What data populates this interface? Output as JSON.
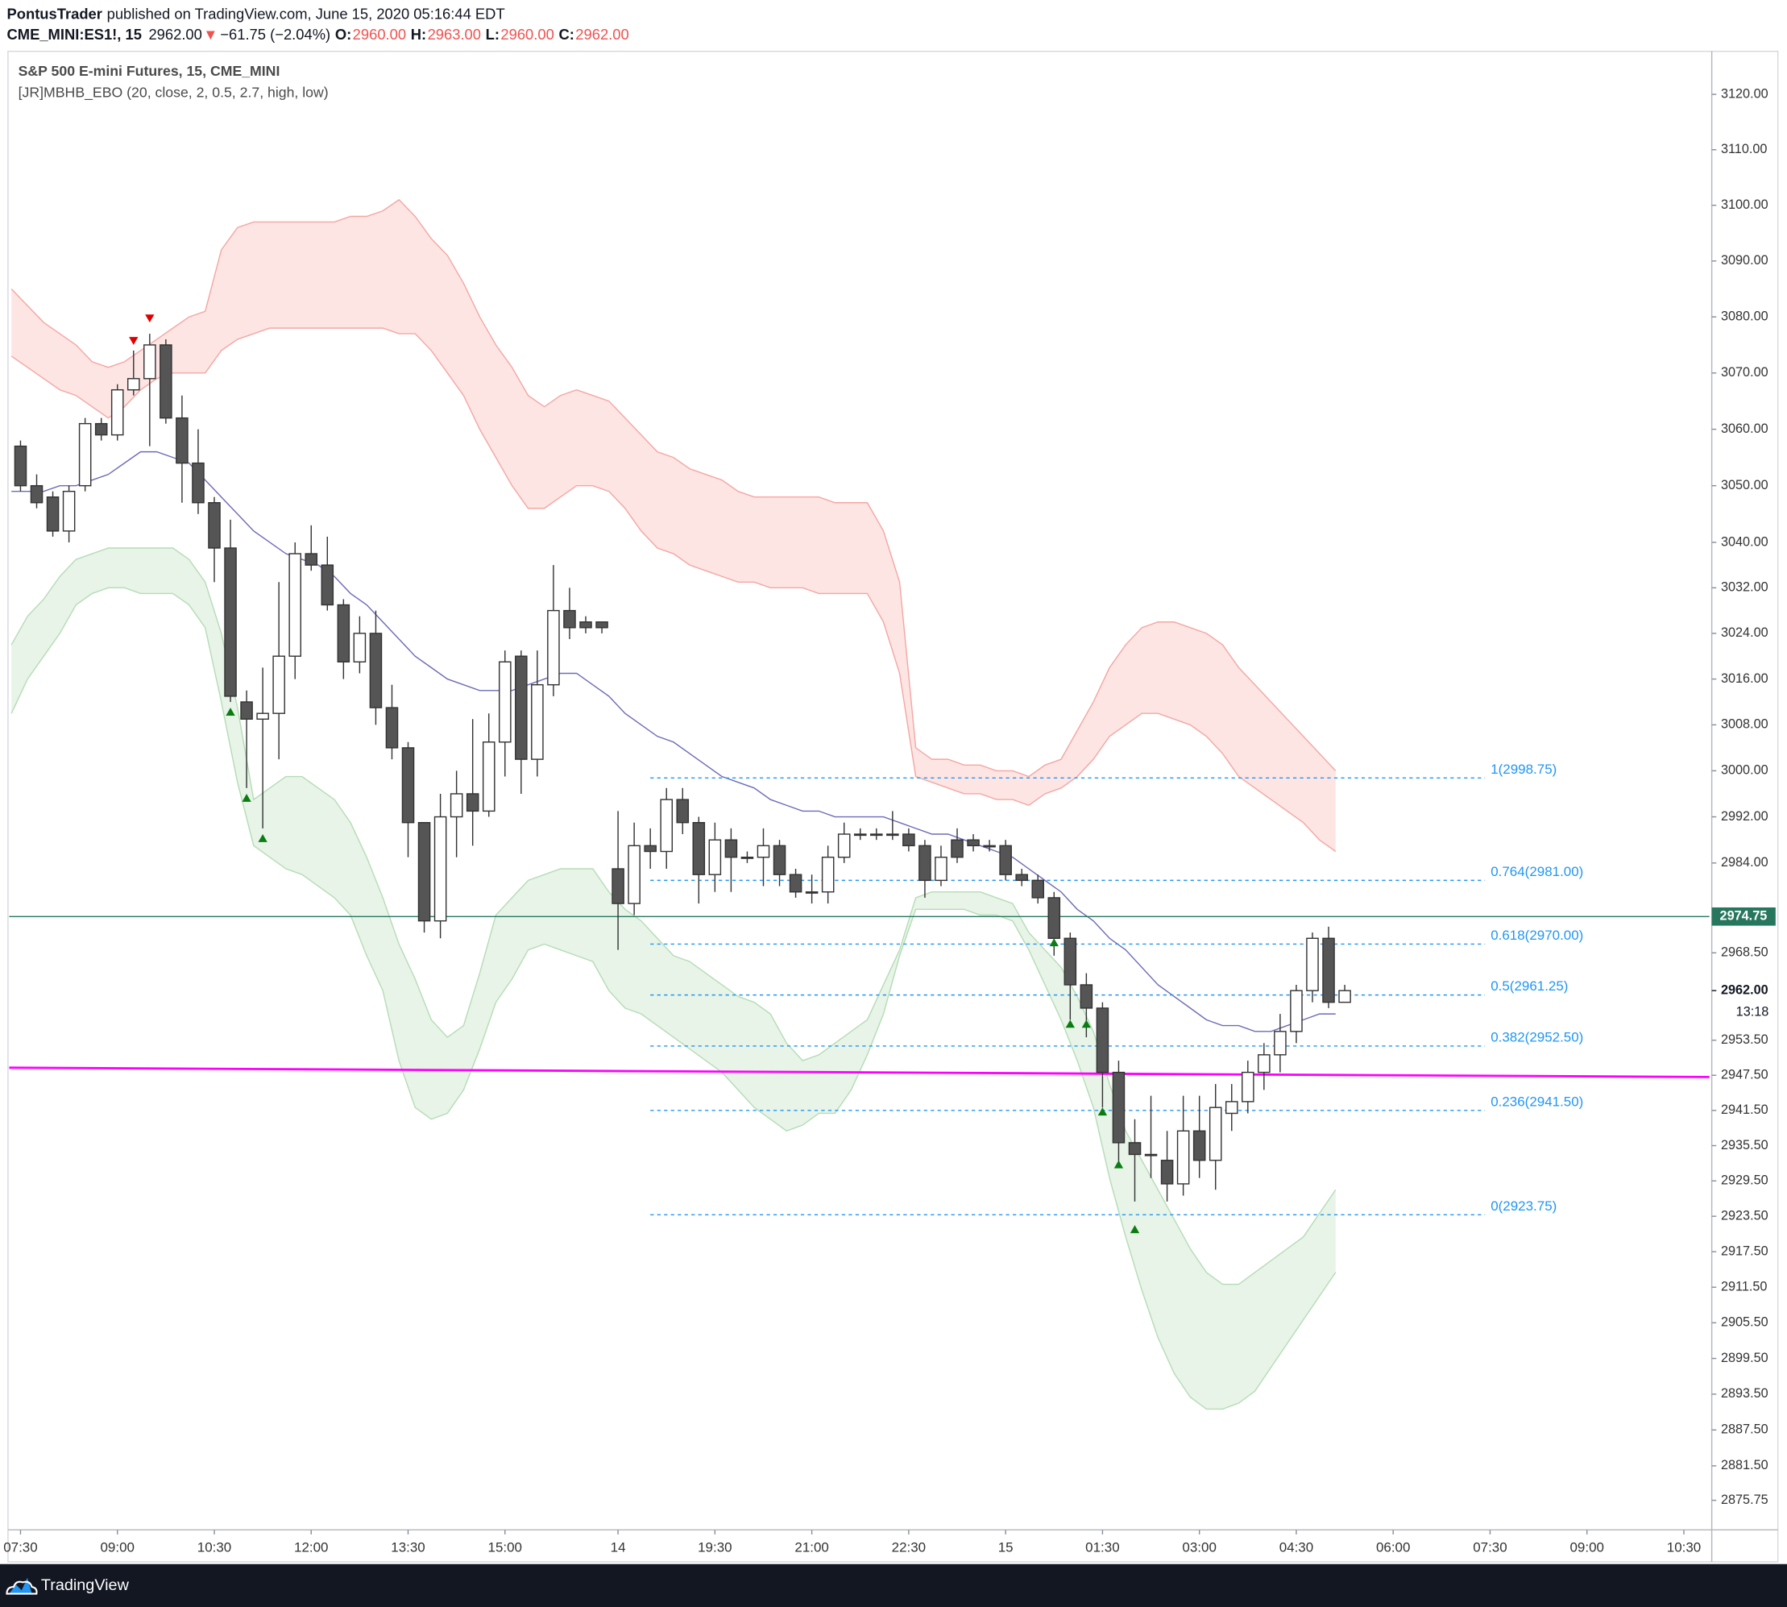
{
  "header": {
    "publisher": "PontusTrader",
    "published": "published on TradingView.com, June 15, 2020 05:16:44 EDT",
    "symbol": "CME_MINI:ES1!, 15",
    "price": "2962.00",
    "change_arrow": "▼",
    "change": "−61.75 (−2.04%)",
    "ohlc_labels": [
      "O:",
      "H:",
      "L:",
      "C:"
    ],
    "ohlc_values": [
      "2960.00",
      "2963.00",
      "2960.00",
      "2962.00"
    ]
  },
  "footer": {
    "brand": "TradingView"
  },
  "chart_data": {
    "type": "candlestick",
    "title": "S&P 500 E-mini Futures, 15, CME_MINI",
    "indicator": "[JR]MBHB_EBO (20, close, 2, 0.5, 2.7, high, low)",
    "log_scale": true,
    "grid": false,
    "ylim": [
      2871.2,
      3127.8
    ],
    "yticks": [
      {
        "value": 3120,
        "label": "3120.00"
      },
      {
        "value": 3110,
        "label": "3110.00"
      },
      {
        "value": 3100,
        "label": "3100.00"
      },
      {
        "value": 3090,
        "label": "3090.00"
      },
      {
        "value": 3080,
        "label": "3080.00"
      },
      {
        "value": 3070,
        "label": "3070.00"
      },
      {
        "value": 3060,
        "label": "3060.00"
      },
      {
        "value": 3050,
        "label": "3050.00"
      },
      {
        "value": 3040,
        "label": "3040.00"
      },
      {
        "value": 3032,
        "label": "3032.00"
      },
      {
        "value": 3024,
        "label": "3024.00"
      },
      {
        "value": 3016,
        "label": "3016.00"
      },
      {
        "value": 3008,
        "label": "3008.00"
      },
      {
        "value": 3000,
        "label": "3000.00"
      },
      {
        "value": 2992,
        "label": "2992.00"
      },
      {
        "value": 2984,
        "label": "2984.00"
      },
      {
        "value": 2968.5,
        "label": "2968.50"
      },
      {
        "value": 2953.5,
        "label": "2953.50"
      },
      {
        "value": 2947.5,
        "label": "2947.50"
      },
      {
        "value": 2941.5,
        "label": "2941.50"
      },
      {
        "value": 2935.5,
        "label": "2935.50"
      },
      {
        "value": 2929.5,
        "label": "2929.50"
      },
      {
        "value": 2923.5,
        "label": "2923.50"
      },
      {
        "value": 2917.5,
        "label": "2917.50"
      },
      {
        "value": 2911.5,
        "label": "2911.50"
      },
      {
        "value": 2905.5,
        "label": "2905.50"
      },
      {
        "value": 2899.5,
        "label": "2899.50"
      },
      {
        "value": 2893.5,
        "label": "2893.50"
      },
      {
        "value": 2887.5,
        "label": "2887.50"
      },
      {
        "value": 2881.5,
        "label": "2881.50"
      },
      {
        "value": 2875.75,
        "label": "2875.75"
      }
    ],
    "xtick_labels": [
      "07:30",
      "09:00",
      "10:30",
      "12:00",
      "13:30",
      "15:00",
      "14",
      "19:30",
      "21:00",
      "22:30",
      "15",
      "01:30",
      "03:00",
      "04:30",
      "06:00",
      "07:30",
      "09:00",
      "10:30"
    ],
    "candle_colors": {
      "up": "#ffffff",
      "down": "#555555",
      "outline": "#333333"
    },
    "open": [
      3057,
      3050,
      3048,
      3042,
      3050,
      3061,
      3059,
      3067,
      3069,
      3075,
      3062,
      3054,
      3047,
      3039,
      3012,
      3009,
      3010,
      3020,
      3038,
      3036,
      3029,
      3019,
      3024,
      3011,
      3004,
      2991,
      2974,
      2992,
      2996,
      2993,
      3005,
      3020,
      3002,
      3015,
      3028,
      3026,
      3026,
      2983,
      2977,
      2987,
      2986,
      2995,
      2991,
      2982,
      2988,
      2985,
      2985,
      2987,
      2982,
      2979,
      2979,
      2985,
      2989,
      2989,
      2989,
      2989,
      2987,
      2981,
      2988,
      2988,
      2987,
      2987,
      2982,
      2981,
      2978,
      2971,
      2963,
      2959,
      2948,
      2936,
      2934,
      2933,
      2929,
      2938,
      2933,
      2941,
      2943,
      2948,
      2951,
      2955,
      2962,
      2971,
      2960
    ],
    "high": [
      3058,
      3052,
      3049,
      3050,
      3062,
      3062,
      3068,
      3074,
      3077,
      3076,
      3066,
      3060,
      3048,
      3044,
      3014,
      3018,
      3033,
      3040,
      3043,
      3041,
      3030,
      3027,
      3028,
      3015,
      3005,
      2991,
      2996,
      3000,
      3009,
      3010,
      3021,
      3021,
      3021,
      3036,
      3032,
      3027,
      3026,
      2993,
      2991,
      2990,
      2997,
      2997,
      2992,
      2991,
      2990,
      2986,
      2990,
      2988,
      2983,
      2982,
      2987,
      2991,
      2990,
      2990,
      2993,
      2990,
      2988,
      2987,
      2990,
      2989,
      2988,
      2988,
      2983,
      2982,
      2979,
      2972,
      2965,
      2960,
      2950,
      2940,
      2944,
      2938,
      2944,
      2944,
      2946,
      2946,
      2950,
      2953,
      2958,
      2963,
      2972,
      2973,
      2963
    ],
    "low": [
      3049,
      3046,
      3041,
      3040,
      3049,
      3058,
      3058,
      3066,
      3057,
      3061,
      3047,
      3045,
      3033,
      3012,
      2997,
      2990,
      3002,
      3016,
      3035,
      3028,
      3016,
      3017,
      3008,
      3002,
      2985,
      2972,
      2971,
      2985,
      2987,
      2992,
      2999,
      2996,
      2999,
      3013,
      3023,
      3024,
      3024,
      2969,
      2975,
      2983,
      2983,
      2989,
      2977,
      2979,
      2979,
      2984,
      2980,
      2980,
      2978,
      2977,
      2977,
      2984,
      2988,
      2988,
      2988,
      2986,
      2978,
      2980,
      2984,
      2986,
      2986,
      2981,
      2980,
      2977,
      2968,
      2957,
      2954,
      2942,
      2932,
      2926,
      2930,
      2926,
      2927,
      2930,
      2928,
      2938,
      2941,
      2945,
      2948,
      2953,
      2960,
      2959,
      2960
    ],
    "close": [
      3050,
      3047,
      3042,
      3049,
      3061,
      3059,
      3067,
      3069,
      3075,
      3062,
      3054,
      3047,
      3039,
      3013,
      3009,
      3010,
      3020,
      3038,
      3036,
      3029,
      3019,
      3024,
      3011,
      3004,
      2991,
      2974,
      2992,
      2996,
      2993,
      3005,
      3019,
      3002,
      3015,
      3028,
      3025,
      3025,
      3025,
      2977,
      2987,
      2986,
      2995,
      2991,
      2982,
      2988,
      2985,
      2985,
      2987,
      2982,
      2979,
      2979,
      2985,
      2989,
      2989,
      2989,
      2989,
      2987,
      2981,
      2985,
      2985,
      2987,
      2987,
      2982,
      2981,
      2978,
      2971,
      2963,
      2959,
      2948,
      2936,
      2934,
      2934,
      2929,
      2938,
      2933,
      2942,
      2943,
      2948,
      2951,
      2955,
      2962,
      2971,
      2960,
      2962
    ],
    "basis": {
      "color": "#6b6bb8",
      "values": [
        3049,
        3049,
        3049,
        3050,
        3050,
        3051,
        3052,
        3054,
        3056,
        3056,
        3055,
        3054,
        3051,
        3048,
        3045,
        3042,
        3040,
        3038,
        3037,
        3036,
        3034,
        3031,
        3029,
        3026,
        3023,
        3020,
        3018,
        3016,
        3015,
        3014,
        3014,
        3014,
        3015,
        3016,
        3017,
        3017,
        3015,
        3013,
        3010,
        3008,
        3006,
        3005,
        3003,
        3001,
        2999,
        2998,
        2997,
        2995,
        2994,
        2993,
        2993,
        2992,
        2992,
        2992,
        2992,
        2991,
        2990,
        2989,
        2989,
        2988,
        2987,
        2986,
        2985,
        2983,
        2981,
        2979,
        2976,
        2974,
        2971,
        2969,
        2966,
        2963,
        2961,
        2959,
        2957,
        2956,
        2956,
        2955,
        2955,
        2956,
        2957,
        2958,
        2958
      ]
    },
    "bands": [
      {
        "color": "#f4a6a2",
        "fill": "#fde0df",
        "outer": [
          3085,
          3082,
          3079,
          3077,
          3075,
          3072,
          3071,
          3072,
          3074,
          3076,
          3078,
          3080,
          3081,
          3092,
          3096,
          3097,
          3097,
          3097,
          3097,
          3097,
          3097,
          3098,
          3098,
          3099,
          3101,
          3098,
          3094,
          3091,
          3086,
          3080,
          3075,
          3071,
          3066,
          3064,
          3066,
          3067,
          3066,
          3065,
          3062,
          3059,
          3056,
          3055,
          3053,
          3052,
          3051,
          3049,
          3048,
          3048,
          3048,
          3048,
          3048,
          3047,
          3047,
          3047,
          3042,
          3033,
          3004,
          3002,
          3002,
          3001,
          3001,
          3000,
          3000,
          2999,
          3001,
          3002,
          3007,
          3012,
          3018,
          3022,
          3025,
          3026,
          3026,
          3025,
          3024,
          3022,
          3018,
          3015,
          3012,
          3009,
          3006,
          3003,
          3000
        ],
        "inner": [
          3073,
          3071,
          3069,
          3067,
          3066,
          3064,
          3062,
          3064,
          3067,
          3069,
          3070,
          3070,
          3070,
          3074,
          3076,
          3077,
          3078,
          3078,
          3078,
          3078,
          3078,
          3078,
          3078,
          3078,
          3077,
          3077,
          3074,
          3070,
          3066,
          3060,
          3055,
          3050,
          3046,
          3046,
          3048,
          3050,
          3050,
          3049,
          3046,
          3042,
          3039,
          3038,
          3036,
          3035,
          3034,
          3033,
          3033,
          3032,
          3032,
          3032,
          3031,
          3031,
          3031,
          3031,
          3026,
          3017,
          2999,
          2998,
          2997,
          2996,
          2996,
          2995,
          2995,
          2994,
          2996,
          2997,
          2999,
          3002,
          3006,
          3008,
          3010,
          3010,
          3009,
          3008,
          3006,
          3003,
          2999,
          2997,
          2995,
          2993,
          2991,
          2988,
          2986
        ]
      },
      {
        "color": "#b5dcb6",
        "fill": "#e3f2e3",
        "outer": [
          3010,
          3016,
          3020,
          3024,
          3029,
          3031,
          3032,
          3032,
          3031,
          3031,
          3031,
          3029,
          3025,
          3012,
          2998,
          2987,
          2985,
          2983,
          2982,
          2980,
          2978,
          2975,
          2968,
          2962,
          2950,
          2942,
          2940,
          2941,
          2945,
          2952,
          2960,
          2964,
          2969,
          2970,
          2969,
          2968,
          2967,
          2962,
          2959,
          2958,
          2956,
          2954,
          2952,
          2950,
          2948,
          2945,
          2942,
          2940,
          2938,
          2939,
          2941,
          2941,
          2945,
          2951,
          2958,
          2968,
          2976,
          2976,
          2976,
          2976,
          2975,
          2975,
          2974,
          2969,
          2963,
          2957,
          2950,
          2942,
          2930,
          2920,
          2911,
          2903,
          2897,
          2893,
          2891,
          2891,
          2892,
          2894,
          2898,
          2902,
          2906,
          2910,
          2914
        ],
        "inner": [
          3022,
          3027,
          3030,
          3034,
          3037,
          3038,
          3039,
          3039,
          3039,
          3039,
          3039,
          3037,
          3033,
          3024,
          3011,
          2995,
          2997,
          2999,
          2999,
          2997,
          2995,
          2991,
          2985,
          2978,
          2970,
          2964,
          2957,
          2954,
          2956,
          2965,
          2975,
          2978,
          2981,
          2982,
          2983,
          2983,
          2983,
          2979,
          2976,
          2974,
          2971,
          2968,
          2967,
          2965,
          2963,
          2961,
          2960,
          2958,
          2953,
          2950,
          2951,
          2953,
          2955,
          2957,
          2963,
          2969,
          2978,
          2979,
          2979,
          2979,
          2979,
          2978,
          2977,
          2972,
          2969,
          2966,
          2961,
          2955,
          2946,
          2938,
          2933,
          2928,
          2923,
          2918,
          2914,
          2912,
          2912,
          2914,
          2916,
          2918,
          2920,
          2924,
          2928
        ]
      }
    ],
    "signals": {
      "sell": {
        "color": "#e00000",
        "values": [
          null,
          null,
          null,
          null,
          null,
          null,
          null,
          3075,
          3079,
          null,
          null,
          null,
          null,
          null,
          null,
          null,
          null,
          null,
          null,
          null,
          null,
          null,
          null,
          null,
          null,
          null,
          null,
          null,
          null,
          null,
          null,
          null,
          null,
          null,
          null,
          null,
          null,
          null,
          null,
          null,
          null,
          null,
          null,
          null,
          null,
          null,
          null,
          null,
          null,
          null,
          null,
          null,
          null,
          null,
          null,
          null,
          null,
          null,
          null,
          null,
          null,
          null,
          null,
          null,
          null,
          null,
          null,
          null,
          null,
          null,
          null,
          null,
          null,
          null,
          null,
          null,
          null,
          null,
          null,
          null,
          null,
          null,
          null
        ]
      },
      "buy": {
        "color": "#0a7d12",
        "values": [
          null,
          null,
          null,
          null,
          null,
          null,
          null,
          null,
          null,
          null,
          null,
          null,
          null,
          3011,
          2996,
          2989,
          null,
          null,
          null,
          null,
          null,
          null,
          null,
          null,
          null,
          null,
          null,
          null,
          null,
          null,
          null,
          null,
          null,
          null,
          null,
          null,
          null,
          null,
          null,
          null,
          null,
          null,
          null,
          null,
          null,
          null,
          null,
          null,
          null,
          null,
          null,
          null,
          null,
          null,
          null,
          null,
          null,
          null,
          null,
          null,
          null,
          null,
          null,
          null,
          2971,
          2957,
          2957,
          2942,
          2933,
          2922,
          null,
          null,
          null,
          null,
          null,
          null,
          null,
          null,
          null,
          null,
          null,
          null,
          null
        ]
      }
    },
    "fib_color": "#2196f3",
    "fib_levels": [
      {
        "value": 2998.75,
        "label": "1(2998.75)"
      },
      {
        "value": 2981,
        "label": "0.764(2981.00)"
      },
      {
        "value": 2970,
        "label": "0.618(2970.00)"
      },
      {
        "value": 2961.25,
        "label": "0.5(2961.25)"
      },
      {
        "value": 2952.5,
        "label": "0.382(2952.50)"
      },
      {
        "value": 2941.5,
        "label": "0.236(2941.50)"
      },
      {
        "value": 2923.75,
        "label": "0(2923.75)"
      }
    ],
    "trendline": {
      "color": "#ff00ff",
      "values": [
        2948.8,
        2947.2
      ]
    },
    "price_line": {
      "color": "#26775e",
      "value": 2974.75,
      "label": "2974.75"
    },
    "last_price": {
      "value": 2962,
      "label": "2962.00"
    },
    "countdown": "13:18"
  }
}
